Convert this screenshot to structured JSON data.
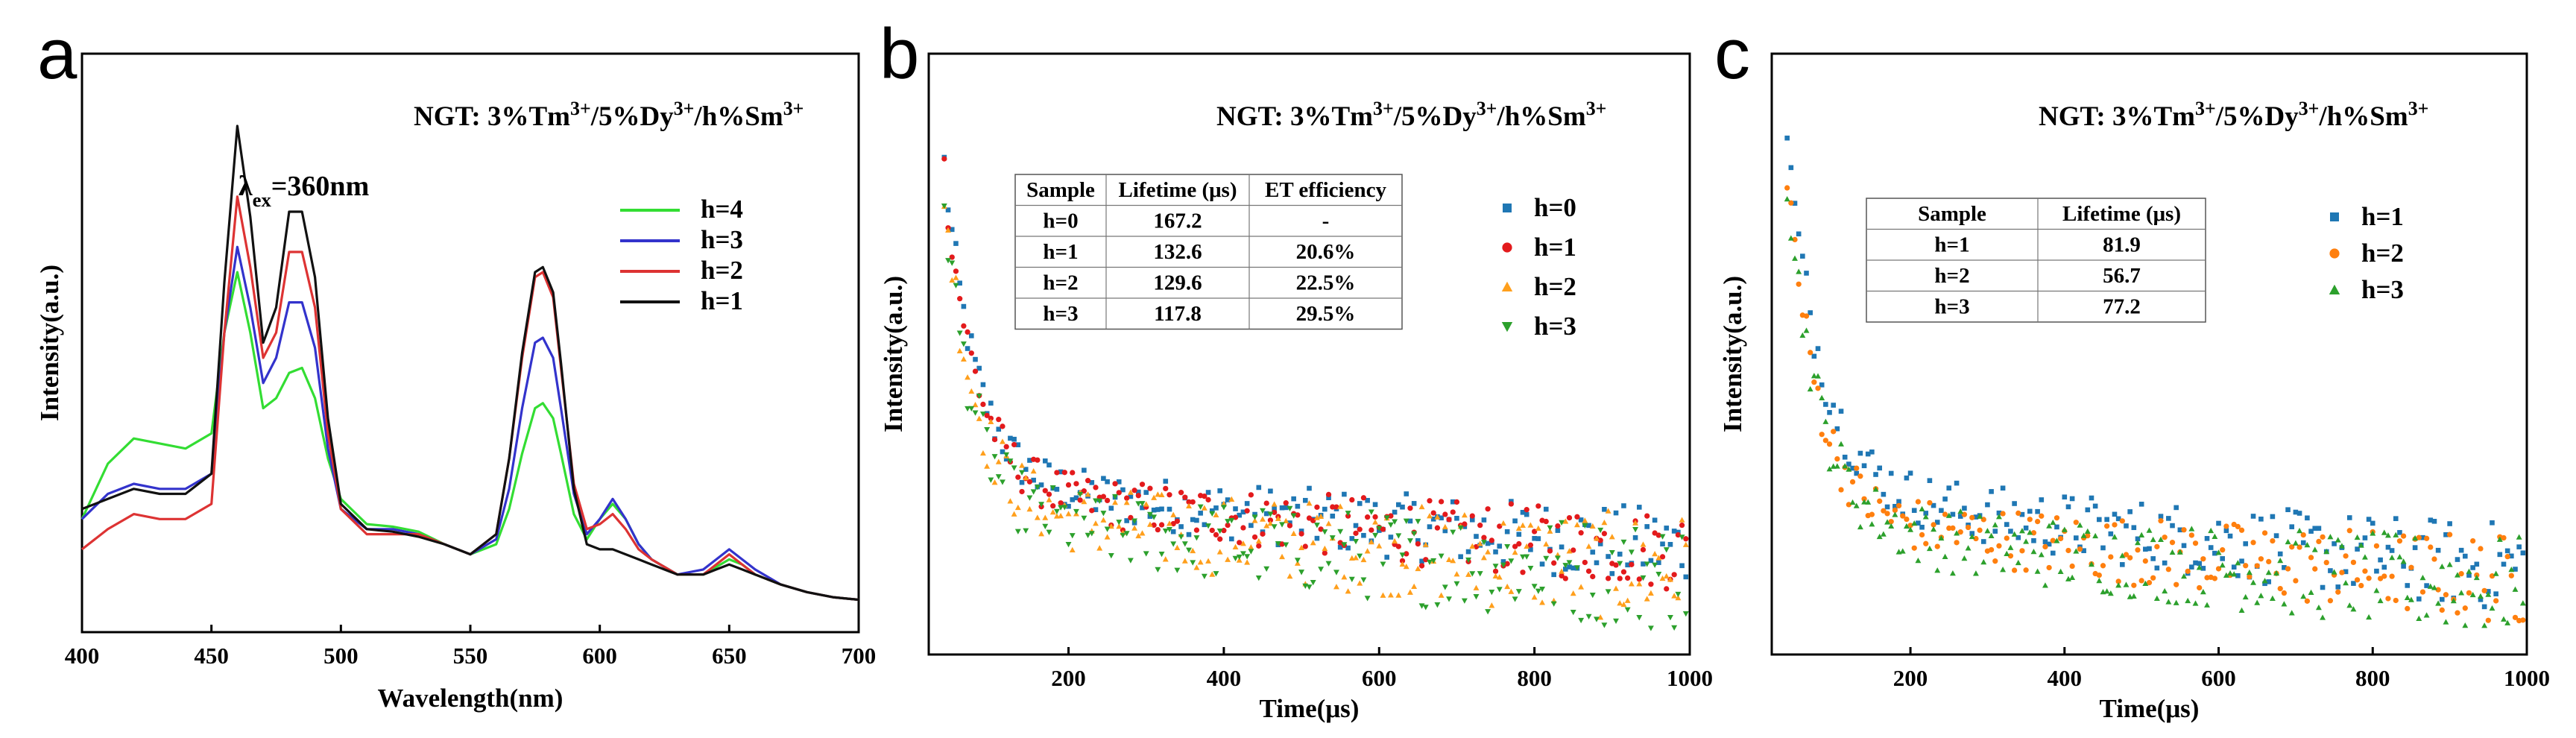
{
  "chart_data": [
    {
      "panel": "a",
      "type": "line",
      "title": "NGT: 3%Tm3+/5%Dy3+/h%Sm3+",
      "annotation": "λex=360nm",
      "xlabel": "Wavelength(nm)",
      "ylabel": "Intensity(a.u.)",
      "xlim": [
        400,
        700
      ],
      "ylim": [
        0,
        1
      ],
      "xticks": [
        "400",
        "450",
        "500",
        "550",
        "600",
        "650",
        "700"
      ],
      "legend": [
        "h=4",
        "h=3",
        "h=2",
        "h=1"
      ],
      "colors": {
        "h=4": "#33dd33",
        "h=3": "#3333cc",
        "h=2": "#dd3333",
        "h=1": "#111111"
      },
      "x": [
        400,
        410,
        420,
        430,
        440,
        450,
        455,
        460,
        465,
        470,
        475,
        480,
        485,
        490,
        495,
        500,
        510,
        520,
        530,
        540,
        550,
        560,
        565,
        570,
        575,
        578,
        582,
        585,
        590,
        595,
        600,
        605,
        610,
        615,
        620,
        630,
        640,
        645,
        650,
        655,
        660,
        670,
        680,
        690,
        700
      ],
      "series": [
        {
          "name": "h=4",
          "values": [
            0.18,
            0.29,
            0.34,
            0.33,
            0.32,
            0.35,
            0.55,
            0.67,
            0.55,
            0.4,
            0.42,
            0.47,
            0.48,
            0.42,
            0.3,
            0.22,
            0.17,
            0.165,
            0.155,
            0.13,
            0.11,
            0.13,
            0.2,
            0.31,
            0.4,
            0.41,
            0.38,
            0.31,
            0.19,
            0.14,
            0.18,
            0.21,
            0.18,
            0.13,
            0.1,
            0.07,
            0.07,
            0.085,
            0.1,
            0.09,
            0.07,
            0.05,
            0.035,
            0.025,
            0.02
          ]
        },
        {
          "name": "h=3",
          "values": [
            0.18,
            0.23,
            0.25,
            0.24,
            0.24,
            0.27,
            0.55,
            0.72,
            0.6,
            0.45,
            0.5,
            0.61,
            0.61,
            0.52,
            0.32,
            0.2,
            0.16,
            0.16,
            0.15,
            0.13,
            0.11,
            0.14,
            0.24,
            0.4,
            0.53,
            0.54,
            0.5,
            0.4,
            0.23,
            0.15,
            0.18,
            0.22,
            0.18,
            0.13,
            0.1,
            0.07,
            0.08,
            0.1,
            0.12,
            0.1,
            0.08,
            0.05,
            0.035,
            0.025,
            0.02
          ]
        },
        {
          "name": "h=2",
          "values": [
            0.12,
            0.16,
            0.19,
            0.18,
            0.18,
            0.21,
            0.55,
            0.82,
            0.68,
            0.5,
            0.55,
            0.71,
            0.71,
            0.6,
            0.35,
            0.2,
            0.15,
            0.15,
            0.15,
            0.13,
            0.11,
            0.15,
            0.3,
            0.5,
            0.66,
            0.67,
            0.62,
            0.48,
            0.25,
            0.16,
            0.17,
            0.19,
            0.16,
            0.12,
            0.1,
            0.07,
            0.07,
            0.09,
            0.11,
            0.09,
            0.07,
            0.05,
            0.035,
            0.025,
            0.02
          ]
        },
        {
          "name": "h=1",
          "values": [
            0.2,
            0.22,
            0.24,
            0.23,
            0.23,
            0.27,
            0.65,
            0.96,
            0.78,
            0.53,
            0.6,
            0.79,
            0.79,
            0.66,
            0.38,
            0.21,
            0.16,
            0.155,
            0.145,
            0.13,
            0.11,
            0.15,
            0.3,
            0.51,
            0.67,
            0.68,
            0.63,
            0.49,
            0.24,
            0.13,
            0.12,
            0.12,
            0.11,
            0.1,
            0.09,
            0.07,
            0.07,
            0.08,
            0.09,
            0.08,
            0.07,
            0.05,
            0.035,
            0.025,
            0.02
          ]
        }
      ]
    },
    {
      "panel": "b",
      "type": "scatter",
      "title": "NGT: 3%Tm3+/5%Dy3+/h%Sm3+",
      "xlabel": "Time(μs)",
      "ylabel": "Intensity(a.u.)",
      "xlim": [
        20,
        1000
      ],
      "ylim": [
        0,
        1
      ],
      "xticks": [
        "200",
        "400",
        "600",
        "800",
        "1000"
      ],
      "legend": [
        "h=0",
        "h=1",
        "h=2",
        "h=3"
      ],
      "markers": [
        "square",
        "circle",
        "triangle-up",
        "triangle-down"
      ],
      "colors": {
        "h=0": "#1f77b4",
        "h=1": "#e31a1c",
        "h=2": "#ff9f1c",
        "h=3": "#2ca02c"
      },
      "decay_model": {
        "x_start": 40,
        "series": [
          {
            "name": "h=0",
            "a": 0.55,
            "tau1": 40,
            "b": 0.5,
            "tau2": 1800,
            "noise": 0.035
          },
          {
            "name": "h=1",
            "a": 0.55,
            "tau1": 40,
            "b": 0.48,
            "tau2": 1800,
            "noise": 0.035
          },
          {
            "name": "h=2",
            "a": 0.55,
            "tau1": 38,
            "b": 0.42,
            "tau2": 1500,
            "noise": 0.05
          },
          {
            "name": "h=3",
            "a": 0.55,
            "tau1": 36,
            "b": 0.4,
            "tau2": 1400,
            "noise": 0.05
          }
        ]
      },
      "table": {
        "headers": [
          "Sample",
          "Lifetime (μs)",
          "ET efficiency"
        ],
        "rows": [
          [
            "h=0",
            "167.2",
            "-"
          ],
          [
            "h=1",
            "132.6",
            "20.6%"
          ],
          [
            "h=2",
            "129.6",
            "22.5%"
          ],
          [
            "h=3",
            "117.8",
            "29.5%"
          ]
        ]
      }
    },
    {
      "panel": "c",
      "type": "scatter",
      "title": "NGT: 3%Tm3+/5%Dy3+/h%Sm3+",
      "xlabel": "Time(μs)",
      "ylabel": "Intensity(a.u.)",
      "xlim": [
        20,
        1000
      ],
      "ylim": [
        0,
        1
      ],
      "xticks": [
        "200",
        "400",
        "600",
        "800",
        "1000"
      ],
      "legend": [
        "h=1",
        "h=2",
        "h=3"
      ],
      "markers": [
        "square",
        "circle",
        "triangle-up"
      ],
      "colors": {
        "h=1": "#1f77b4",
        "h=2": "#ff7f0e",
        "h=3": "#2ca02c"
      },
      "decay_model": {
        "x_start": 40,
        "series": [
          {
            "name": "h=1",
            "a": 0.6,
            "tau1": 45,
            "b": 0.48,
            "tau2": 1300,
            "noise": 0.04
          },
          {
            "name": "h=2",
            "a": 0.6,
            "tau1": 38,
            "b": 0.4,
            "tau2": 1300,
            "noise": 0.04
          },
          {
            "name": "h=3",
            "a": 0.6,
            "tau1": 40,
            "b": 0.37,
            "tau2": 1200,
            "noise": 0.045
          }
        ]
      },
      "table": {
        "headers": [
          "Sample",
          "Lifetime (μs)"
        ],
        "rows": [
          [
            "h=1",
            "81.9"
          ],
          [
            "h=2",
            "56.7"
          ],
          [
            "h=3",
            "77.2"
          ]
        ]
      }
    }
  ]
}
